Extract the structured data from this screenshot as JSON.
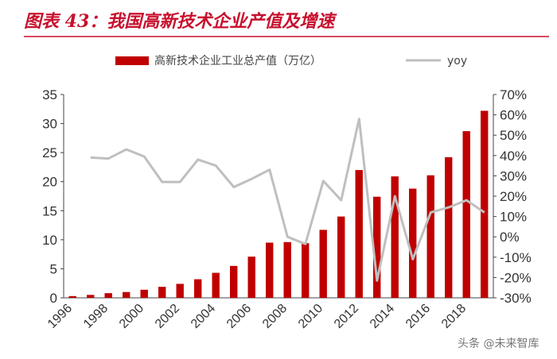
{
  "title": "图表 43：我国高新技术企业产值及增速",
  "watermark": "头条 @未来智库",
  "colors": {
    "title": "#c8102e",
    "bar": "#c00000",
    "line": "#bfbfbf",
    "rule": "#c8102e"
  },
  "chart_data": {
    "type": "bar",
    "categories": [
      "1996",
      "1997",
      "1998",
      "1999",
      "2000",
      "2001",
      "2002",
      "2003",
      "2004",
      "2005",
      "2006",
      "2007",
      "2008",
      "2009",
      "2010",
      "2011",
      "2012",
      "2013",
      "2014",
      "2015",
      "2016",
      "2017",
      "2018",
      "2019"
    ],
    "x_tick_labels": [
      "1996",
      "1998",
      "2000",
      "2002",
      "2004",
      "2006",
      "2008",
      "2010",
      "2012",
      "2014",
      "2016",
      "2018"
    ],
    "series": [
      {
        "name": "高新技术企业工业总产值（万亿）",
        "type": "bar",
        "axis": "left",
        "values": [
          0.3,
          0.5,
          0.8,
          1.0,
          1.4,
          1.9,
          2.4,
          3.2,
          4.3,
          5.5,
          7.1,
          9.5,
          9.6,
          9.4,
          11.7,
          14.0,
          22.0,
          17.4,
          20.9,
          18.8,
          21.1,
          24.2,
          28.7,
          32.2
        ]
      },
      {
        "name": "yoy",
        "type": "line",
        "axis": "right",
        "values": [
          null,
          39,
          38.5,
          43,
          39.5,
          27,
          27,
          38,
          35,
          24.5,
          28.5,
          33,
          0,
          -3.5,
          27.5,
          18,
          58,
          -21.5,
          20,
          -11,
          12,
          14.5,
          18,
          12
        ]
      }
    ],
    "y_left": {
      "min": 0,
      "max": 35,
      "ticks": [
        0,
        5,
        10,
        15,
        20,
        25,
        30,
        35
      ]
    },
    "y_right": {
      "min": -30,
      "max": 70,
      "ticks": [
        "-30%",
        "-20%",
        "-10%",
        "0%",
        "10%",
        "20%",
        "30%",
        "40%",
        "50%",
        "60%",
        "70%"
      ]
    },
    "legend_position": "top",
    "grid": false
  }
}
